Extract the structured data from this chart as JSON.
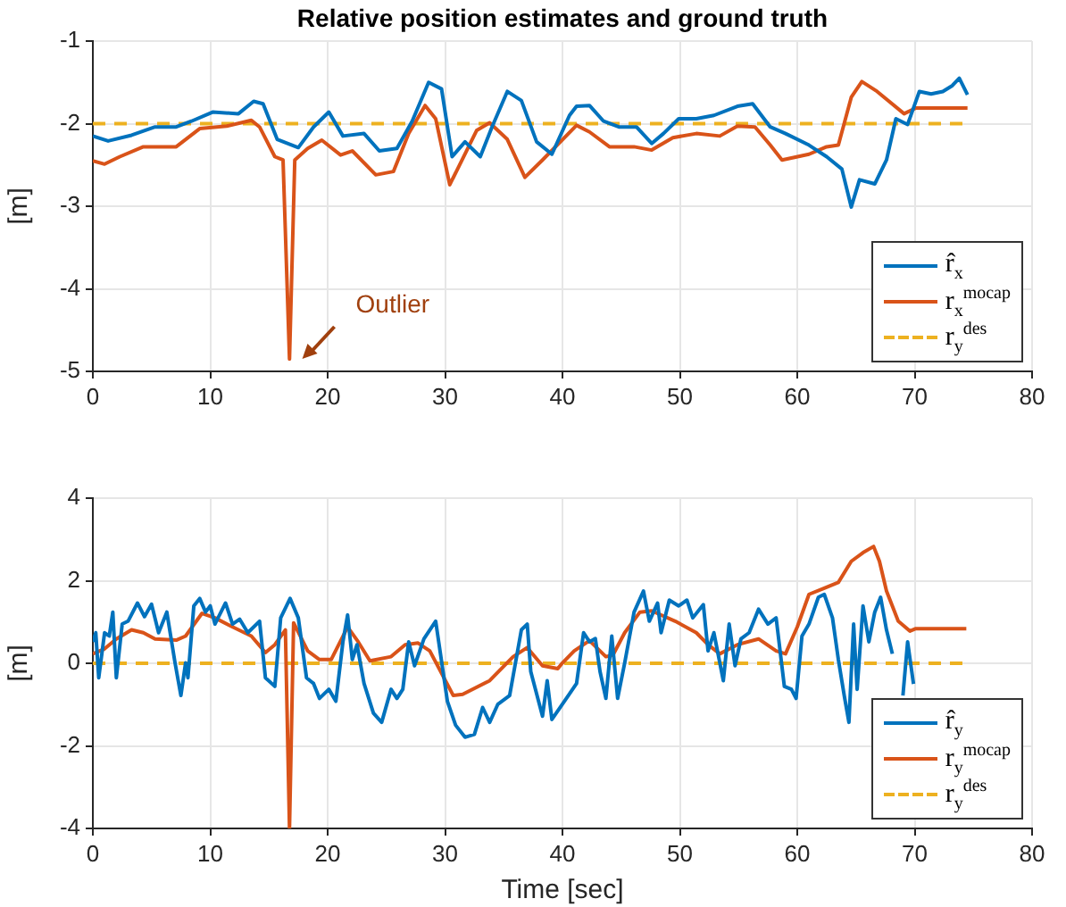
{
  "chart_data": [
    {
      "type": "line",
      "title": "Relative position estimates and ground truth",
      "ylabel": "[m]",
      "xlim": [
        0,
        80
      ],
      "xticks": [
        0,
        10,
        20,
        30,
        40,
        50,
        60,
        70,
        80
      ],
      "ylim": [
        -5,
        -1
      ],
      "yticks": [
        -5,
        -4,
        -3,
        -2,
        -1
      ],
      "grid": true,
      "legend": "bottom right",
      "annotations": [
        "Outlier"
      ],
      "series": [
        {
          "name": "r̂$_{x}$",
          "color": "#0072bd",
          "x": [
            0,
            1.3,
            3.3,
            5.3,
            7.1,
            8.4,
            10.2,
            12.4,
            13.7,
            14.5,
            15.7,
            17.5,
            18.8,
            20.1,
            21.3,
            23.1,
            24.4,
            25.9,
            27.2,
            28.6,
            29.7,
            30.6,
            31.7,
            33.0,
            34.0,
            35.3,
            36.5,
            37.8,
            39.1,
            40.6,
            41.2,
            42.3,
            43.5,
            44.8,
            46.3,
            47.6,
            48.6,
            49.9,
            51.4,
            52.9,
            54.9,
            56.2,
            57.7,
            59.0,
            61.0,
            62.5,
            63.8,
            64.6,
            65.3,
            66.6,
            67.6,
            68.4,
            69.4,
            70.4,
            71.4,
            72.4,
            73.2,
            73.8,
            74.5
          ],
          "values": [
            -2.15,
            -2.21,
            -2.14,
            -2.04,
            -2.04,
            -1.97,
            -1.86,
            -1.88,
            -1.73,
            -1.76,
            -2.19,
            -2.29,
            -2.04,
            -1.86,
            -2.15,
            -2.12,
            -2.33,
            -2.3,
            -1.97,
            -1.5,
            -1.58,
            -2.4,
            -2.22,
            -2.4,
            -2.04,
            -1.61,
            -1.72,
            -2.22,
            -2.37,
            -1.9,
            -1.79,
            -1.78,
            -1.97,
            -2.04,
            -2.04,
            -2.24,
            -2.12,
            -1.94,
            -1.94,
            -1.9,
            -1.79,
            -1.76,
            -2.04,
            -2.12,
            -2.26,
            -2.4,
            -2.55,
            -3.01,
            -2.68,
            -2.73,
            -2.44,
            -1.94,
            -2.01,
            -1.61,
            -1.64,
            -1.61,
            -1.54,
            -1.45,
            -1.65
          ]
        },
        {
          "name": "r$_{x}$$^{mocap}$",
          "color": "#d95319",
          "x": [
            0,
            1.0,
            2.3,
            4.3,
            7.1,
            9.1,
            11.4,
            13.5,
            14.2,
            15.5,
            16.2,
            16.75,
            17.2,
            18.3,
            19.5,
            21.1,
            22.1,
            24.1,
            25.6,
            26.9,
            28.3,
            29.2,
            30.4,
            32.7,
            33.8,
            35.3,
            36.8,
            38.3,
            41.2,
            42.3,
            44.0,
            46.1,
            47.6,
            49.4,
            51.4,
            53.4,
            54.9,
            56.4,
            57.7,
            58.7,
            61.0,
            62.5,
            63.5,
            64.6,
            65.5,
            66.8,
            69.1,
            70.1,
            74.5
          ],
          "values": [
            -2.45,
            -2.49,
            -2.4,
            -2.28,
            -2.28,
            -2.06,
            -2.03,
            -1.96,
            -2.04,
            -2.4,
            -2.44,
            -4.85,
            -2.44,
            -2.3,
            -2.2,
            -2.38,
            -2.33,
            -2.62,
            -2.58,
            -2.12,
            -1.78,
            -1.94,
            -2.74,
            -2.08,
            -1.99,
            -2.19,
            -2.65,
            -2.44,
            -2.02,
            -2.1,
            -2.28,
            -2.28,
            -2.32,
            -2.17,
            -2.12,
            -2.15,
            -2.03,
            -2.04,
            -2.26,
            -2.44,
            -2.37,
            -2.28,
            -2.26,
            -1.68,
            -1.49,
            -1.61,
            -1.88,
            -1.81,
            -1.81
          ]
        },
        {
          "name": "r$_{y}$$^{des}$",
          "color": "#edb120",
          "line_style": "dashed",
          "x": [
            0,
            74.5
          ],
          "values": [
            -2,
            -2
          ]
        }
      ]
    },
    {
      "type": "line",
      "xlabel": "Time [sec]",
      "ylabel": "[m]",
      "xlim": [
        0,
        80
      ],
      "xticks": [
        0,
        10,
        20,
        30,
        40,
        50,
        60,
        70,
        80
      ],
      "ylim": [
        -4,
        4
      ],
      "yticks": [
        -4,
        -2,
        0,
        2,
        4
      ],
      "grid": true,
      "legend": "bottom right",
      "series": [
        {
          "name": "r̂$_{y}$",
          "color": "#0072bd",
          "x": [
            0,
            0.25,
            0.5,
            1.0,
            1.4,
            1.7,
            2.0,
            2.5,
            3.0,
            3.8,
            4.4,
            5.0,
            5.6,
            6.3,
            7.0,
            7.5,
            7.9,
            8.1,
            8.6,
            9.1,
            9.6,
            10.0,
            10.4,
            11.3,
            11.9,
            12.5,
            13.2,
            14.2,
            14.7,
            15.5,
            16.0,
            16.8,
            17.5,
            18.2,
            18.8,
            19.3,
            20.1,
            20.7,
            21.3,
            21.7,
            22.1,
            22.5,
            23.1,
            23.9,
            24.6,
            25.4,
            25.9,
            26.4,
            26.9,
            27.4,
            28.2,
            29.2,
            30.2,
            30.9,
            31.7,
            32.5,
            33.2,
            33.8,
            34.5,
            35.5,
            36.5,
            37.0,
            37.3,
            38.3,
            38.7,
            39.1,
            40.5,
            41.2,
            41.8,
            42.3,
            42.8,
            43.2,
            43.7,
            44.2,
            44.7,
            45.3,
            46.1,
            46.9,
            47.4,
            48.1,
            48.4,
            49.1,
            49.9,
            50.6,
            51.1,
            52.0,
            52.4,
            52.9,
            53.7,
            54.2,
            54.7,
            55.2,
            55.9,
            56.7,
            57.5,
            58.2,
            58.9,
            59.5,
            59.9,
            60.4,
            61.0,
            61.8,
            62.3,
            63.0,
            63.5,
            64.0,
            64.4,
            64.8,
            65.1,
            65.6,
            66.1,
            66.6,
            67.1,
            67.6,
            68.1,
            68.6,
            69.0,
            69.4,
            69.9
          ],
          "values": [
            0.52,
            0.74,
            -0.35,
            0.74,
            0.66,
            1.24,
            -0.35,
            0.95,
            1.02,
            1.46,
            1.13,
            1.43,
            0.74,
            1.24,
            0.01,
            -0.78,
            0.01,
            -0.35,
            1.39,
            1.57,
            1.24,
            1.39,
            0.95,
            1.46,
            0.95,
            1.07,
            0.74,
            1.02,
            -0.35,
            -0.56,
            1.1,
            1.57,
            1.1,
            -0.35,
            -0.49,
            -0.85,
            -0.63,
            -0.92,
            0.52,
            1.17,
            0.09,
            0.45,
            -0.49,
            -1.21,
            -1.43,
            -0.63,
            -0.85,
            -0.63,
            0.52,
            -0.06,
            0.59,
            1.02,
            -0.92,
            -1.5,
            -1.79,
            -1.72,
            -1.07,
            -1.43,
            -0.99,
            -0.78,
            0.81,
            0.95,
            -0.2,
            -1.28,
            -0.42,
            -1.36,
            -0.78,
            -0.49,
            0.74,
            0.52,
            0.6,
            -0.2,
            -0.85,
            0.66,
            -0.85,
            0.01,
            1.24,
            1.75,
            1.02,
            1.46,
            0.74,
            1.53,
            1.39,
            1.53,
            1.1,
            1.42,
            0.3,
            0.74,
            -0.42,
            0.95,
            -0.06,
            0.59,
            0.74,
            1.31,
            0.95,
            1.1,
            -0.56,
            -0.63,
            -0.85,
            0.66,
            0.95,
            1.6,
            1.67,
            1.1,
            0.09,
            -0.78,
            -1.43,
            0.95,
            -0.63,
            1.39,
            0.52,
            1.24,
            1.6,
            0.81,
            0.23,
            null,
            -0.78,
            0.52,
            -0.5
          ]
        },
        {
          "name": "r$_{y}$$^{mocap}$",
          "color": "#d95319",
          "x": [
            0,
            1.0,
            2.0,
            3.3,
            4.3,
            5.3,
            7.1,
            7.9,
            9.3,
            10.4,
            11.9,
            13.5,
            14.7,
            15.5,
            16.4,
            16.75,
            17.1,
            18.3,
            19.3,
            20.3,
            21.7,
            22.6,
            23.6,
            25.4,
            26.6,
            27.7,
            28.7,
            30.7,
            31.5,
            33.8,
            35.8,
            37.0,
            38.3,
            39.6,
            40.0,
            41.0,
            42.3,
            43.7,
            44.3,
            45.3,
            46.6,
            47.6,
            49.6,
            51.4,
            52.4,
            53.4,
            54.9,
            56.7,
            58.2,
            59.0,
            60.0,
            61.0,
            62.3,
            63.5,
            64.6,
            65.6,
            66.5,
            67.0,
            67.6,
            68.6,
            69.6,
            70.1,
            74.4
          ],
          "values": [
            0.23,
            0.35,
            0.59,
            0.81,
            0.74,
            0.59,
            0.56,
            0.66,
            1.21,
            1.1,
            0.88,
            0.66,
            0.26,
            0.45,
            0.81,
            -4,
            0.98,
            0.3,
            0.09,
            0.09,
            0.88,
            0.52,
            0.06,
            0.16,
            0.45,
            0.49,
            0.3,
            -0.78,
            -0.75,
            -0.42,
            0.16,
            0.38,
            -0.06,
            -0.13,
            0.01,
            0.3,
            0.55,
            0.16,
            0.2,
            0.74,
            1.24,
            1.27,
            1.02,
            0.74,
            0.45,
            0.23,
            0.45,
            0.59,
            0.3,
            0.23,
            0.88,
            1.67,
            1.82,
            1.96,
            2.47,
            2.68,
            2.83,
            2.47,
            1.75,
            1.02,
            0.78,
            0.84,
            0.84
          ]
        },
        {
          "name": "r$_{y}$$^{des}$",
          "color": "#edb120",
          "line_style": "dashed",
          "x": [
            0,
            74.5
          ],
          "values": [
            0,
            0
          ]
        }
      ]
    }
  ]
}
